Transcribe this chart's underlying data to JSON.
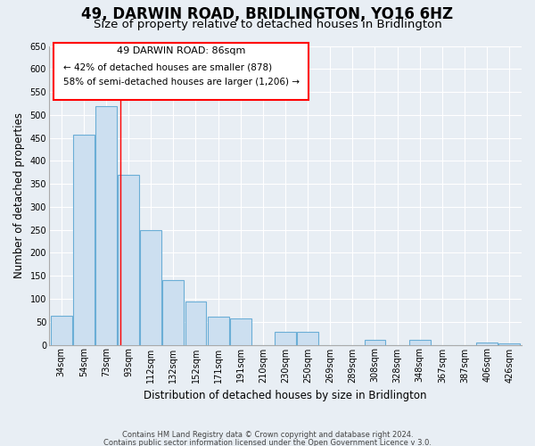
{
  "title": "49, DARWIN ROAD, BRIDLINGTON, YO16 6HZ",
  "subtitle": "Size of property relative to detached houses in Bridlington",
  "xlabel": "Distribution of detached houses by size in Bridlington",
  "ylabel": "Number of detached properties",
  "bar_color": "#ccdff0",
  "bar_edge_color": "#6baed6",
  "categories": [
    "34sqm",
    "54sqm",
    "73sqm",
    "93sqm",
    "112sqm",
    "132sqm",
    "152sqm",
    "171sqm",
    "191sqm",
    "210sqm",
    "230sqm",
    "250sqm",
    "269sqm",
    "289sqm",
    "308sqm",
    "328sqm",
    "348sqm",
    "367sqm",
    "387sqm",
    "406sqm",
    "426sqm"
  ],
  "values": [
    63,
    457,
    519,
    370,
    250,
    140,
    95,
    62,
    58,
    0,
    28,
    28,
    0,
    0,
    10,
    0,
    10,
    0,
    0,
    5,
    3
  ],
  "ylim": [
    0,
    650
  ],
  "yticks": [
    0,
    50,
    100,
    150,
    200,
    250,
    300,
    350,
    400,
    450,
    500,
    550,
    600,
    650
  ],
  "property_line_x": 2.62,
  "annotation_title": "49 DARWIN ROAD: 86sqm",
  "annotation_line1": "← 42% of detached houses are smaller (878)",
  "annotation_line2": "58% of semi-detached houses are larger (1,206) →",
  "footer1": "Contains HM Land Registry data © Crown copyright and database right 2024.",
  "footer2": "Contains public sector information licensed under the Open Government Licence v 3.0.",
  "background_color": "#e8eef4",
  "grid_color": "#ffffff",
  "title_fontsize": 12,
  "subtitle_fontsize": 9.5,
  "tick_fontsize": 7,
  "ylabel_fontsize": 8.5,
  "xlabel_fontsize": 8.5
}
